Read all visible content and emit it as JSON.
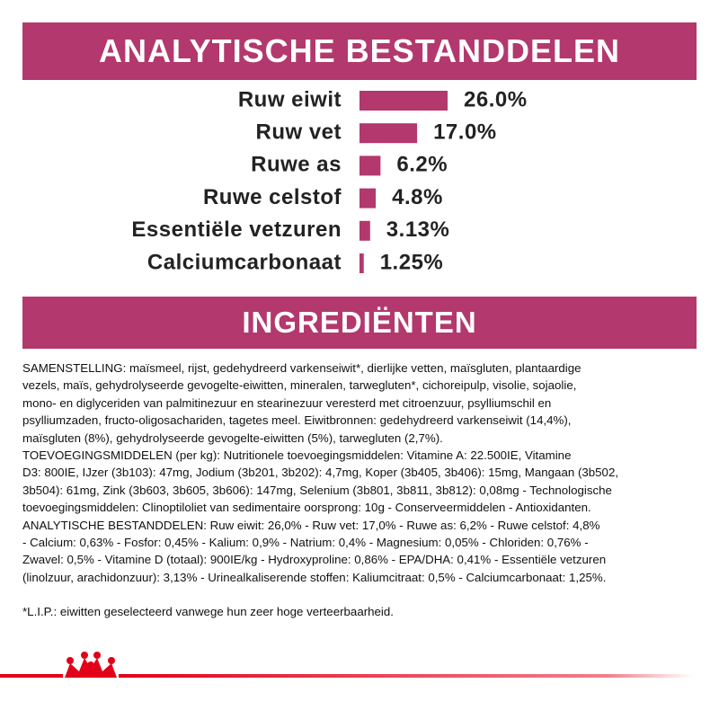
{
  "header": {
    "title": "ANALYTISCHE BESTANDDELEN"
  },
  "chart_data": {
    "type": "bar",
    "orientation": "horizontal",
    "color": "#b3386d",
    "categories": [
      "Ruw eiwit",
      "Ruw vet",
      "Ruwe as",
      "Ruwe celstof",
      "Essentiële vetzuren",
      "Calciumcarbonaat"
    ],
    "values": [
      26.0,
      17.0,
      6.2,
      4.8,
      3.13,
      1.25
    ],
    "value_labels": [
      "26.0%",
      "17.0%",
      "6.2%",
      "4.8%",
      "3.13%",
      "1.25%"
    ]
  },
  "ingredients": {
    "title": "INGREDIËNTEN",
    "lines": [
      "SAMENSTELLING: maïsmeel, rijst, gedehydreerd varkenseiwit*, dierlijke vetten, maïsgluten, plantaardige",
      "vezels, maïs, gehydrolyseerde gevogelte-eiwitten, mineralen, tarwegluten*, cichoreipulp, visolie, sojaolie,",
      "mono- en diglyceriden van palmitinezuur en stearinezuur veresterd met citroenzuur, psylliumschil en",
      "psylliumzaden, fructo-oligosachariden, tagetes meel. Eiwitbronnen: gedehydreerd varkenseiwit (14,4%),",
      "maïsgluten (8%), gehydrolyseerde gevogelte-eiwitten (5%), tarwegluten (2,7%).",
      "TOEVOEGINGSMIDDELEN (per kg): Nutritionele toevoegingsmiddelen: Vitamine A: 22.500IE, Vitamine",
      "D3: 800IE, IJzer (3b103): 47mg, Jodium (3b201, 3b202): 4,7mg, Koper (3b405, 3b406): 15mg, Mangaan (3b502,",
      "3b504): 61mg, Zink (3b603, 3b605, 3b606): 147mg, Selenium (3b801, 3b811, 3b812): 0,08mg - Technologische",
      "toevoegingsmiddelen: Clinoptiloliet van sedimentaire oorsprong: 10g - Conserveermiddelen - Antioxidanten.",
      "ANALYTISCHE BESTANDDELEN: Ruw eiwit: 26,0% - Ruw vet: 17,0% - Ruwe as: 6,2% - Ruwe celstof: 4,8%",
      "- Calcium: 0,63% - Fosfor: 0,45% - Kalium: 0,9% - Natrium: 0,4% - Magnesium: 0,05% - Chloriden: 0,76% -",
      "Zwavel: 0,5% - Vitamine D (totaal): 900IE/kg - Hydroxyproline: 0,86% - EPA/DHA: 0,41% - Essentiële vetzuren",
      "(linolzuur, arachidonzuur): 3,13% - Urinealkaliserende stoffen: Kaliumcitraat: 0,5% - Calciumcarbonaat: 1,25%."
    ],
    "footnote": "*L.I.P.: eiwitten geselecteerd vanwege hun zeer hoge verteerbaarheid."
  }
}
